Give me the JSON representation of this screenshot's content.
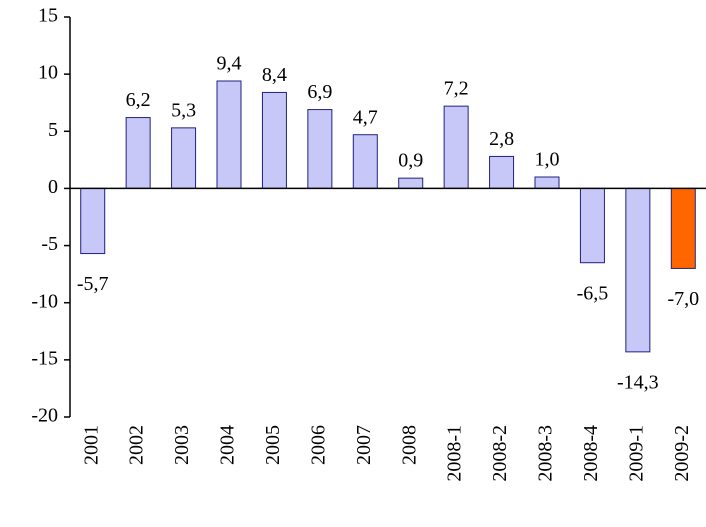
{
  "chart_data": {
    "type": "bar",
    "categories": [
      "2001",
      "2002",
      "2003",
      "2004",
      "2005",
      "2006",
      "2007",
      "2008",
      "2008-1",
      "2008-2",
      "2008-3",
      "2008-4",
      "2009-1",
      "2009-2"
    ],
    "values": [
      -5.7,
      6.2,
      5.3,
      9.4,
      8.4,
      6.9,
      4.7,
      0.9,
      7.2,
      2.8,
      1.0,
      -6.5,
      -14.3,
      -7.0
    ],
    "value_labels": [
      "-5,7",
      "6,2",
      "5,3",
      "9,4",
      "8,4",
      "6,9",
      "4,7",
      "0,9",
      "7,2",
      "2,8",
      "1,0",
      "-6,5",
      "-14,3",
      "-7,0"
    ],
    "colors": [
      "#c8c8f8",
      "#c8c8f8",
      "#c8c8f8",
      "#c8c8f8",
      "#c8c8f8",
      "#c8c8f8",
      "#c8c8f8",
      "#c8c8f8",
      "#c8c8f8",
      "#c8c8f8",
      "#c8c8f8",
      "#c8c8f8",
      "#c8c8f8",
      "#ff6600"
    ],
    "ylim": [
      -20,
      15
    ],
    "yticks": [
      -20,
      -15,
      -10,
      -5,
      0,
      5,
      10,
      15
    ],
    "grid": false
  }
}
